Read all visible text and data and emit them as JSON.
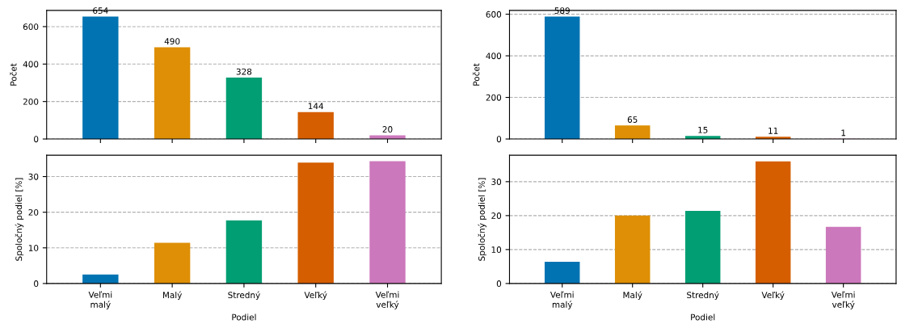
{
  "chart_data": [
    {
      "type": "bar",
      "ylabel": "Počet",
      "categories": [
        null,
        null,
        null,
        null,
        null
      ],
      "colors": [
        "#0173b2",
        "#de8f05",
        "#029e73",
        "#d55e00",
        "#cc78bc"
      ],
      "values": [
        654,
        490,
        328,
        144,
        20
      ],
      "ylim": [
        0,
        686.7
      ],
      "yticks": [
        0,
        200,
        400,
        600
      ],
      "grid": "y",
      "data_labels": true,
      "tick_labels": "y"
    },
    {
      "type": "bar",
      "ylabel": "Počet",
      "categories": [
        null,
        null,
        null,
        null,
        null
      ],
      "colors": [
        "#0173b2",
        "#de8f05",
        "#029e73",
        "#d55e00",
        "#cc78bc"
      ],
      "values": [
        589,
        65,
        15,
        11,
        1
      ],
      "ylim": [
        0,
        618.5
      ],
      "yticks": [
        0,
        200,
        400,
        600
      ],
      "grid": "y",
      "data_labels": true,
      "tick_labels": "y"
    },
    {
      "type": "bar",
      "ylabel": "Spoločný podiel [%]",
      "xlabel": "Podiel",
      "categories": [
        "Veľmi\nmalý",
        "Malý",
        "Stredný",
        "Veľký",
        "Veľmi\nveľký"
      ],
      "colors": [
        "#0173b2",
        "#de8f05",
        "#029e73",
        "#d55e00",
        "#cc78bc"
      ],
      "values": [
        2.5,
        11.4,
        17.7,
        33.9,
        34.3
      ],
      "ylim": [
        0,
        36.0
      ],
      "yticks": [
        0,
        10,
        20,
        30
      ],
      "grid": "y"
    },
    {
      "type": "bar",
      "ylabel": "Spoločný podiel [%]",
      "xlabel": "Podiel",
      "categories": [
        "Veľmi\nmalý",
        "Malý",
        "Stredný",
        "Veľký",
        "Veľmi\nveľký"
      ],
      "colors": [
        "#0173b2",
        "#de8f05",
        "#029e73",
        "#d55e00",
        "#cc78bc"
      ],
      "values": [
        6.4,
        20.0,
        21.4,
        36.0,
        16.7
      ],
      "ylim": [
        0,
        37.8
      ],
      "yticks": [
        0,
        10,
        20,
        30
      ],
      "grid": "y"
    }
  ]
}
